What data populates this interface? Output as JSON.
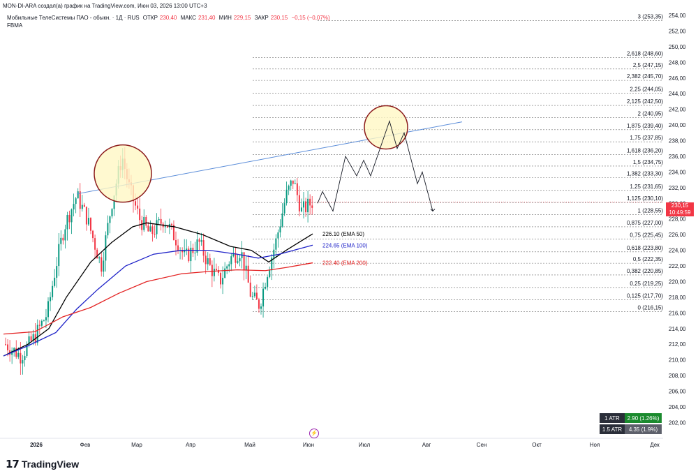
{
  "header": {
    "title": "MON-DI-ARA создал(а) график на TradingView.com, Июн 03, 2026 13:00 UTC+3"
  },
  "symbol": {
    "name": "Мобильные ТелеСистемы ПАО - обыкн. · 1Д · RUS",
    "open_label": "ОТКР",
    "open": "230,40",
    "high_label": "МАКС",
    "high": "231,40",
    "low_label": "МИН",
    "low": "229,15",
    "close_label": "ЗАКР",
    "close": "230,15",
    "change": "−0,15 (−0,07%)"
  },
  "indicator_label": "FBMA",
  "price_tag": {
    "price": "230,15",
    "countdown": "10:49:59"
  },
  "atr": [
    {
      "label": "1 ATR",
      "value": "2.90 (1.26%)",
      "color": "#089981"
    },
    {
      "label": "1.5 ATR",
      "value": "4.35 (1.9%)",
      "color": "#5d606b"
    }
  ],
  "logo": {
    "text": "TradingView"
  },
  "colors": {
    "up": "#089981",
    "down": "#f23645",
    "ema50": "#000000",
    "ema100": "#1e22c8",
    "ema200": "#e32222",
    "trendline": "#5b8dd9",
    "circle": "#8b1a1a",
    "circle_fill": "#fff8c4"
  },
  "chart_data": {
    "type": "candlestick",
    "y_axis": {
      "min": 201,
      "max": 255,
      "ticks": [
        202,
        204,
        206,
        208,
        210,
        212,
        214,
        216,
        218,
        220,
        222,
        224,
        226,
        228,
        230,
        232,
        234,
        236,
        238,
        240,
        242,
        244,
        246,
        248,
        250,
        252,
        254
      ]
    },
    "x_axis": {
      "labels": [
        "2026",
        "Фев",
        "Мар",
        "Апр",
        "Май",
        "Июн",
        "Июл",
        "Авг",
        "Сен",
        "Окт",
        "Ноя",
        "Дек"
      ]
    },
    "fibonacci_levels": [
      {
        "label": "0 (216,15)",
        "value": 216.15
      },
      {
        "label": "0,125 (217,70)",
        "value": 217.7
      },
      {
        "label": "0,25 (219,25)",
        "value": 219.25
      },
      {
        "label": "0,382 (220,85)",
        "value": 220.85
      },
      {
        "label": "0,5 (222,35)",
        "value": 222.35
      },
      {
        "label": "0,618 (223,80)",
        "value": 223.8
      },
      {
        "label": "0,75 (225,45)",
        "value": 225.45
      },
      {
        "label": "0,875 (227,00)",
        "value": 227.0
      },
      {
        "label": "1 (228,55)",
        "value": 228.55
      },
      {
        "label": "1,125 (230,10)",
        "value": 230.1
      },
      {
        "label": "1,25 (231,65)",
        "value": 231.65
      },
      {
        "label": "1,382 (233,30)",
        "value": 233.3
      },
      {
        "label": "1,5 (234,75)",
        "value": 234.75
      },
      {
        "label": "1,618 (236,20)",
        "value": 236.2
      },
      {
        "label": "1,75 (237,85)",
        "value": 237.85
      },
      {
        "label": "1,875 (239,40)",
        "value": 239.4
      },
      {
        "label": "2 (240,95)",
        "value": 240.95
      },
      {
        "label": "2,125 (242,50)",
        "value": 242.5
      },
      {
        "label": "2,25 (244,05)",
        "value": 244.05
      },
      {
        "label": "2,382 (245,70)",
        "value": 245.7
      },
      {
        "label": "2,5 (247,15)",
        "value": 247.15
      },
      {
        "label": "2,618 (248,60)",
        "value": 248.6
      },
      {
        "label": "3 (253,35)",
        "value": 253.35
      }
    ],
    "ema": [
      {
        "label": "226.10 (EMA 50)",
        "value": 226.1,
        "color": "#000000"
      },
      {
        "label": "224.65 (EMA 100)",
        "value": 224.65,
        "color": "#1e22c8"
      },
      {
        "label": "222.40 (EMA 200)",
        "value": 222.4,
        "color": "#e32222"
      }
    ],
    "last_price": 230.15
  }
}
